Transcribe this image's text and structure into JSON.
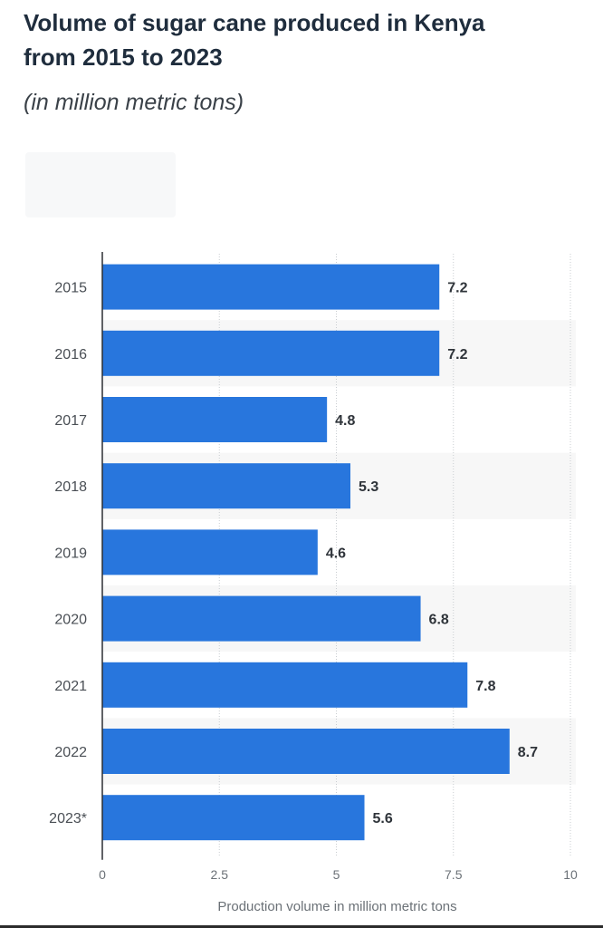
{
  "chart_data": {
    "type": "bar",
    "orientation": "horizontal",
    "title": "Volume of sugar cane produced in Kenya\nfrom 2015 to 2023",
    "subtitle": "(in million metric tons)",
    "categories": [
      "2015",
      "2016",
      "2017",
      "2018",
      "2019",
      "2020",
      "2021",
      "2022",
      "2023*"
    ],
    "values": [
      7.2,
      7.2,
      4.8,
      5.3,
      4.6,
      6.8,
      7.8,
      8.7,
      5.6
    ],
    "value_labels": [
      "7.2",
      "7.2",
      "4.8",
      "5.3",
      "4.6",
      "6.8",
      "7.8",
      "8.7",
      "5.6"
    ],
    "xlabel": "Production volume in million metric tons",
    "ylabel": "",
    "xlim": [
      0,
      10
    ],
    "x_ticks": [
      0,
      2.5,
      5,
      7.5,
      10
    ],
    "x_tick_labels": [
      "0",
      "2.5",
      "5",
      "7.5",
      "10"
    ],
    "grid": true,
    "bar_color": "#2876dd",
    "alt_row_color": "#f7f7f7"
  }
}
